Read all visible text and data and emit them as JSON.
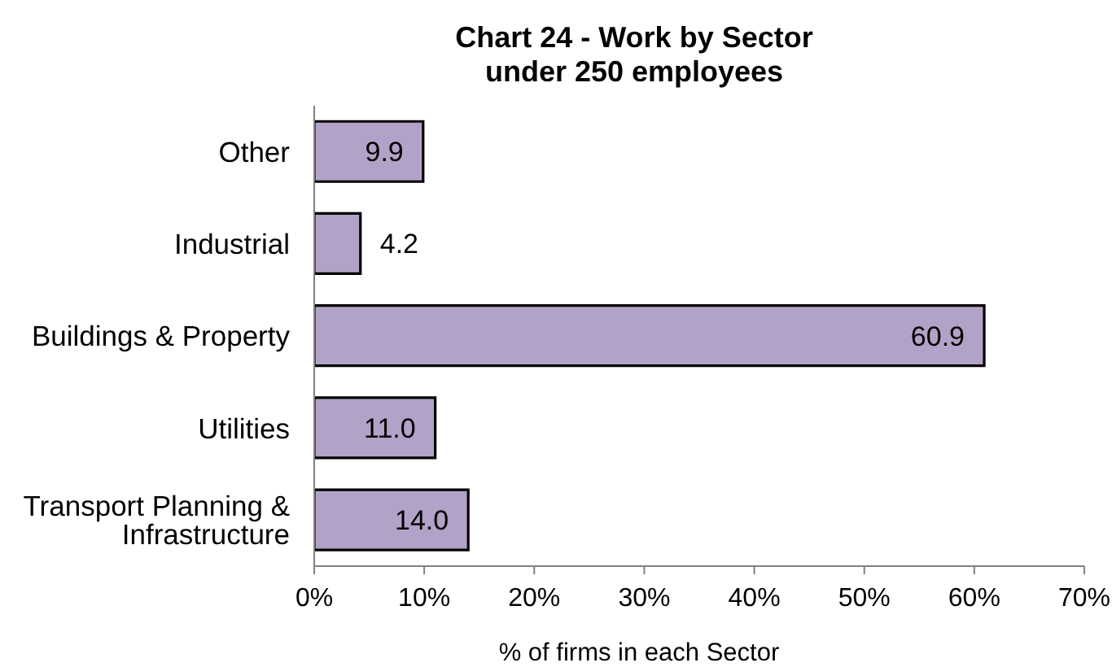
{
  "chart_data": {
    "type": "bar",
    "orientation": "horizontal",
    "title": "Chart 24 - Work by Sector",
    "subtitle": "under 250 employees",
    "xlabel": "% of firms in each Sector",
    "categories": [
      "Other",
      "Industrial",
      "Buildings & Property",
      "Utilities",
      "Transport Planning & Infrastructure"
    ],
    "values": [
      9.9,
      4.2,
      60.9,
      11.0,
      14.0
    ],
    "value_labels": [
      "9.9",
      "4.2",
      "60.9",
      "11.0",
      "14.0"
    ],
    "color": "#b3a2c7",
    "xlim": [
      0,
      70
    ],
    "xticks": [
      {
        "value": 0,
        "label": "0%"
      },
      {
        "value": 10,
        "label": "10%"
      },
      {
        "value": 20,
        "label": "20%"
      },
      {
        "value": 30,
        "label": "30%"
      },
      {
        "value": 40,
        "label": "40%"
      },
      {
        "value": 50,
        "label": "50%"
      },
      {
        "value": 60,
        "label": "60%"
      },
      {
        "value": 70,
        "label": "70%"
      }
    ]
  }
}
